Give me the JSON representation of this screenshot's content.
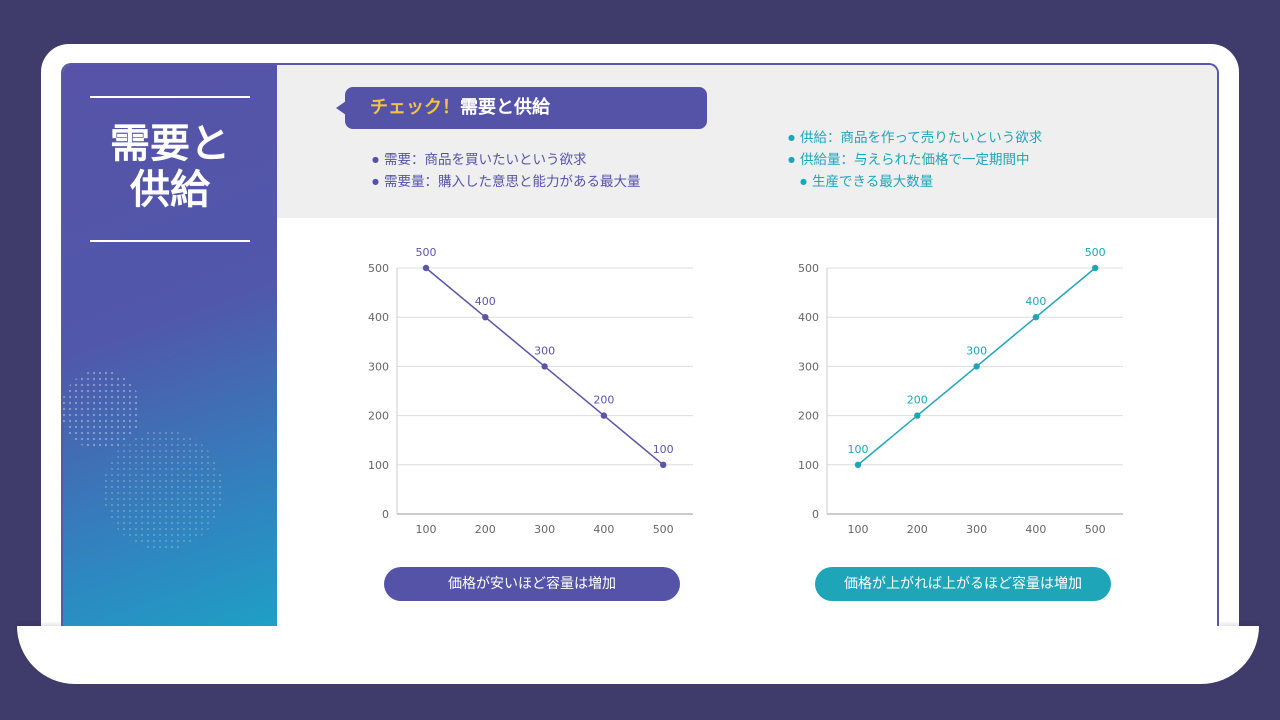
{
  "sidebar": {
    "title_line1": "需要と",
    "title_line2": "供給"
  },
  "header": {
    "check_label": "チェック！",
    "check_title": "需要と供給"
  },
  "demand_bullets": [
    "需要：商品を買いたいという欲求",
    "需要量：購入した意思と能力がある最大量"
  ],
  "supply_bullets": [
    "供給：商品を作って売りたいという欲求",
    "供給量：与えられた価格で一定期間中",
    "生産できる最大数量"
  ],
  "captions": {
    "demand": "価格が安いほど容量は増加",
    "supply": "価格が上がれば上がるほど容量は増加"
  },
  "colors": {
    "demand": "#5b55a8",
    "supply": "#1ea5b8",
    "accent": "#f5c242"
  },
  "chart_data": [
    {
      "type": "line",
      "categories": [
        "100",
        "200",
        "300",
        "400",
        "500"
      ],
      "values": [
        500,
        400,
        300,
        200,
        100
      ],
      "data_labels": [
        "500",
        "400",
        "300",
        "200",
        "100"
      ],
      "yticks": [
        "0",
        "100",
        "200",
        "300",
        "400",
        "500"
      ],
      "ylim": [
        0,
        500
      ],
      "grid": true,
      "color": "#5b55a8"
    },
    {
      "type": "line",
      "categories": [
        "100",
        "200",
        "300",
        "400",
        "500"
      ],
      "values": [
        100,
        200,
        300,
        400,
        500
      ],
      "data_labels": [
        "100",
        "200",
        "300",
        "400",
        "500"
      ],
      "yticks": [
        "0",
        "100",
        "200",
        "300",
        "400",
        "500"
      ],
      "ylim": [
        0,
        500
      ],
      "grid": true,
      "color": "#1ea5b8"
    }
  ]
}
